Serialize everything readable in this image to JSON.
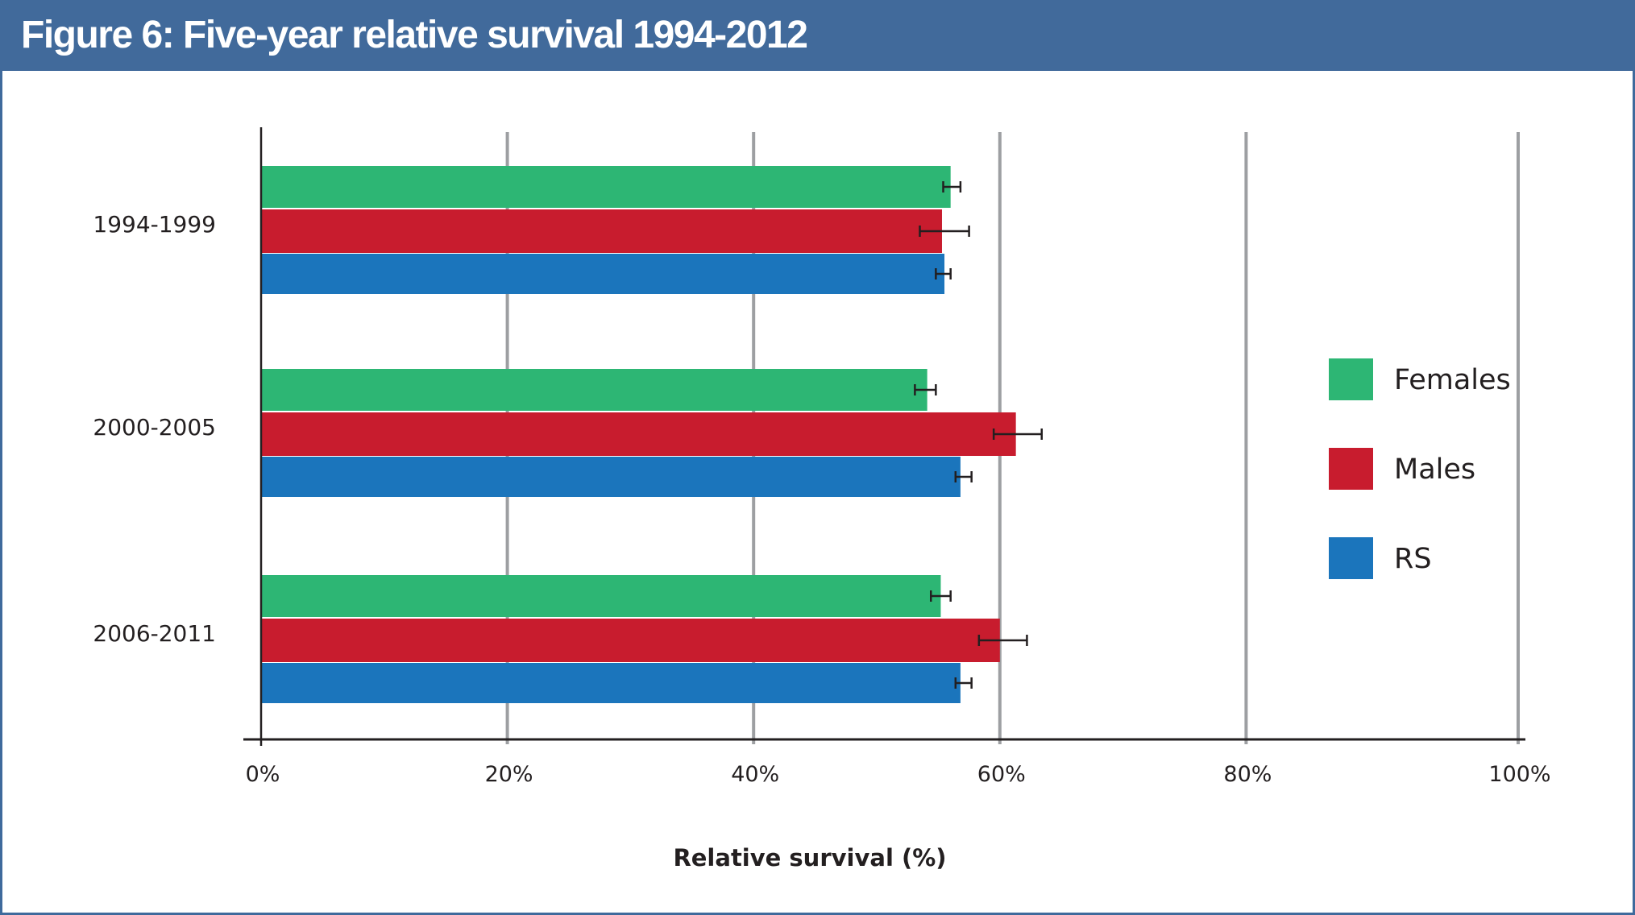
{
  "header": {
    "title": "Figure 6: Five-year relative survival 1994-2012",
    "background": "#416a9b"
  },
  "chart_data": {
    "type": "bar",
    "orientation": "horizontal",
    "title": "Figure 6: Five-year relative survival 1994-2012",
    "xlabel": "Relative survival (%)",
    "ylabel": "",
    "xlim": [
      0,
      100
    ],
    "x_ticks": [
      "0%",
      "20%",
      "40%",
      "60%",
      "80%",
      "100%"
    ],
    "x_tick_values": [
      0,
      20,
      40,
      60,
      80,
      100
    ],
    "grid": "vertical",
    "legend_position": "right",
    "categories": [
      "1994-1999",
      "2000-2005",
      "2006-2011"
    ],
    "series": [
      {
        "name": "Females",
        "color": "#2db674",
        "values": [
          56.0,
          54.1,
          55.2
        ],
        "error_low": [
          55.4,
          53.1,
          54.4
        ],
        "error_high": [
          56.8,
          54.8,
          56.0
        ]
      },
      {
        "name": "Males",
        "color": "#c81c2e",
        "values": [
          55.3,
          61.3,
          60.0
        ],
        "error_low": [
          53.5,
          59.5,
          58.3
        ],
        "error_high": [
          57.5,
          63.4,
          62.2
        ]
      },
      {
        "name": "RS",
        "color": "#1b75bc",
        "values": [
          55.5,
          56.8,
          56.8
        ],
        "error_low": [
          54.8,
          56.4,
          56.4
        ],
        "error_high": [
          56.0,
          57.7,
          57.7
        ]
      }
    ]
  }
}
